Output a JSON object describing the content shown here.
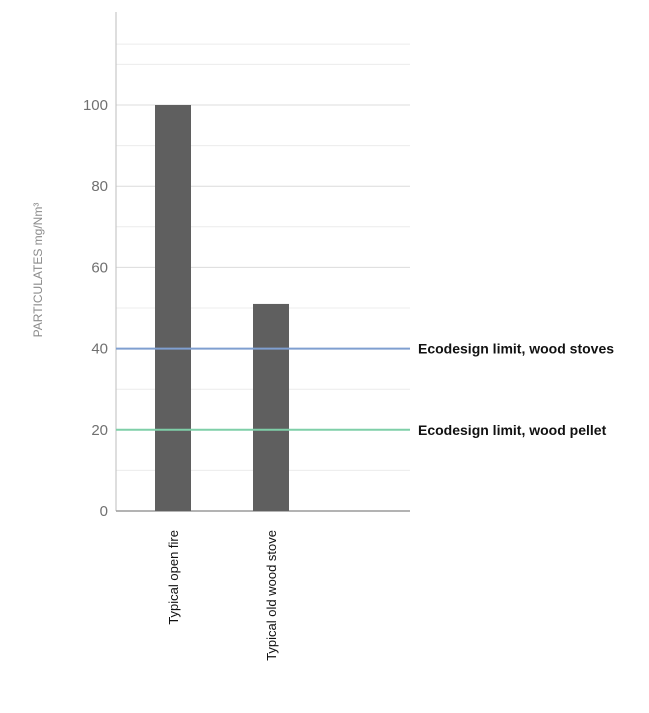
{
  "chart_data": {
    "type": "bar",
    "title": "",
    "xlabel": "",
    "ylabel": "PARTICULATES mg/Nm³",
    "ylim": [
      0,
      120
    ],
    "yticks": [
      0,
      20,
      40,
      60,
      80,
      100
    ],
    "minor_grid_step": 10,
    "grid": true,
    "categories": [
      "Typical open fire",
      "Typical old wood stove"
    ],
    "values": [
      100,
      51
    ],
    "bar_color": "#5f5f5f",
    "reference_lines": [
      {
        "label": "Ecodesign limit, wood stoves",
        "value": 40,
        "color": "#7f9fd0"
      },
      {
        "label": "Ecodesign limit, wood pellet",
        "value": 20,
        "color": "#7fcfa8"
      }
    ]
  }
}
